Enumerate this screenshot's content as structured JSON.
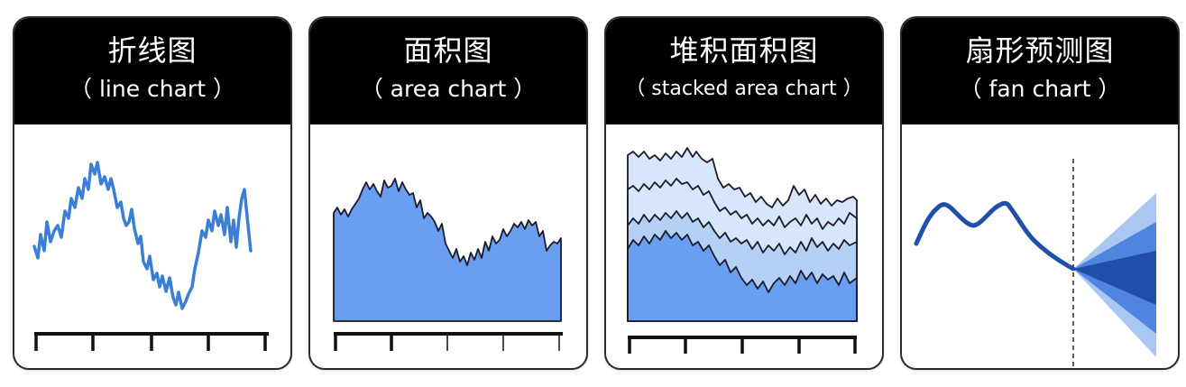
{
  "panels": [
    {
      "title": "折线图",
      "subtitle": "（ line chart ）"
    },
    {
      "title": "面积图",
      "subtitle": "（ area chart ）"
    },
    {
      "title": "堆积面积图",
      "subtitle": "（ stacked area chart ）"
    },
    {
      "title": "扇形预测图",
      "subtitle": "（ fan chart ）"
    }
  ],
  "colors": {
    "header_bg": "#000000",
    "header_text": "#ffffff",
    "line_blue": "#3a7ed6",
    "area_fill": "#6a9ef0",
    "stack_light": "#d6e6fb",
    "stack_mid": "#b5d0f5",
    "stack_dark": "#6a9ef0",
    "fan_line": "#1f4fa8",
    "fan_dark": "#1f4fa8",
    "fan_mid": "#4f84e0",
    "fan_light": "#a9c7f3"
  }
}
